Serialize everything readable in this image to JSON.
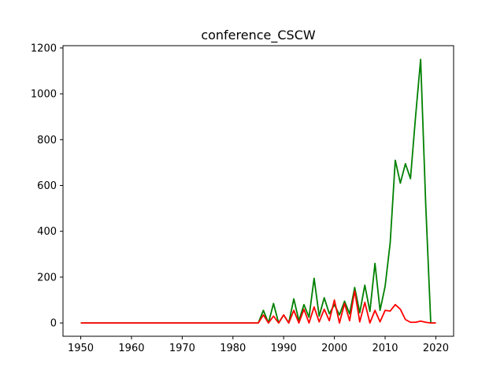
{
  "chart_data": {
    "type": "line",
    "title": "conference_CSCW",
    "xlabel": "",
    "ylabel": "",
    "xlim": [
      1946.5,
      2023.5
    ],
    "ylim": [
      -58,
      1210
    ],
    "xticks": [
      1950,
      1960,
      1970,
      1980,
      1990,
      2000,
      2010,
      2020
    ],
    "yticks": [
      0,
      200,
      400,
      600,
      800,
      1000,
      1200
    ],
    "grid": false,
    "series": [
      {
        "color": "#008000",
        "x": [
          1950,
          1951,
          1952,
          1953,
          1954,
          1955,
          1956,
          1957,
          1958,
          1959,
          1960,
          1961,
          1962,
          1963,
          1964,
          1965,
          1966,
          1967,
          1968,
          1969,
          1970,
          1971,
          1972,
          1973,
          1974,
          1975,
          1976,
          1977,
          1978,
          1979,
          1980,
          1981,
          1982,
          1983,
          1984,
          1985,
          1986,
          1987,
          1988,
          1989,
          1990,
          1991,
          1992,
          1993,
          1994,
          1995,
          1996,
          1997,
          1998,
          1999,
          2000,
          2001,
          2002,
          2003,
          2004,
          2005,
          2006,
          2007,
          2008,
          2009,
          2010,
          2011,
          2012,
          2013,
          2014,
          2015,
          2016,
          2017,
          2018,
          2019,
          2020
        ],
        "y": [
          0,
          0,
          0,
          0,
          0,
          0,
          0,
          0,
          0,
          0,
          0,
          0,
          0,
          0,
          0,
          0,
          0,
          0,
          0,
          0,
          0,
          0,
          0,
          0,
          0,
          0,
          0,
          0,
          0,
          0,
          0,
          0,
          0,
          0,
          0,
          0,
          55,
          0,
          85,
          0,
          35,
          0,
          105,
          10,
          80,
          25,
          195,
          30,
          110,
          40,
          80,
          35,
          95,
          40,
          155,
          45,
          165,
          50,
          260,
          55,
          160,
          350,
          710,
          610,
          695,
          630,
          900,
          1150,
          520,
          0,
          0
        ]
      },
      {
        "color": "#ff0000",
        "x": [
          1950,
          1951,
          1952,
          1953,
          1954,
          1955,
          1956,
          1957,
          1958,
          1959,
          1960,
          1961,
          1962,
          1963,
          1964,
          1965,
          1966,
          1967,
          1968,
          1969,
          1970,
          1971,
          1972,
          1973,
          1974,
          1975,
          1976,
          1977,
          1978,
          1979,
          1980,
          1981,
          1982,
          1983,
          1984,
          1985,
          1986,
          1987,
          1988,
          1989,
          1990,
          1991,
          1992,
          1993,
          1994,
          1995,
          1996,
          1997,
          1998,
          1999,
          2000,
          2001,
          2002,
          2003,
          2004,
          2005,
          2006,
          2007,
          2008,
          2009,
          2010,
          2011,
          2012,
          2013,
          2014,
          2015,
          2016,
          2017,
          2018,
          2019,
          2020
        ],
        "y": [
          0,
          0,
          0,
          0,
          0,
          0,
          0,
          0,
          0,
          0,
          0,
          0,
          0,
          0,
          0,
          0,
          0,
          0,
          0,
          0,
          0,
          0,
          0,
          0,
          0,
          0,
          0,
          0,
          0,
          0,
          0,
          0,
          0,
          0,
          0,
          0,
          35,
          0,
          30,
          0,
          35,
          0,
          55,
          0,
          60,
          0,
          70,
          5,
          60,
          10,
          100,
          0,
          85,
          10,
          140,
          5,
          90,
          0,
          55,
          5,
          55,
          52,
          80,
          60,
          15,
          3,
          3,
          8,
          3,
          0,
          0
        ]
      }
    ]
  }
}
